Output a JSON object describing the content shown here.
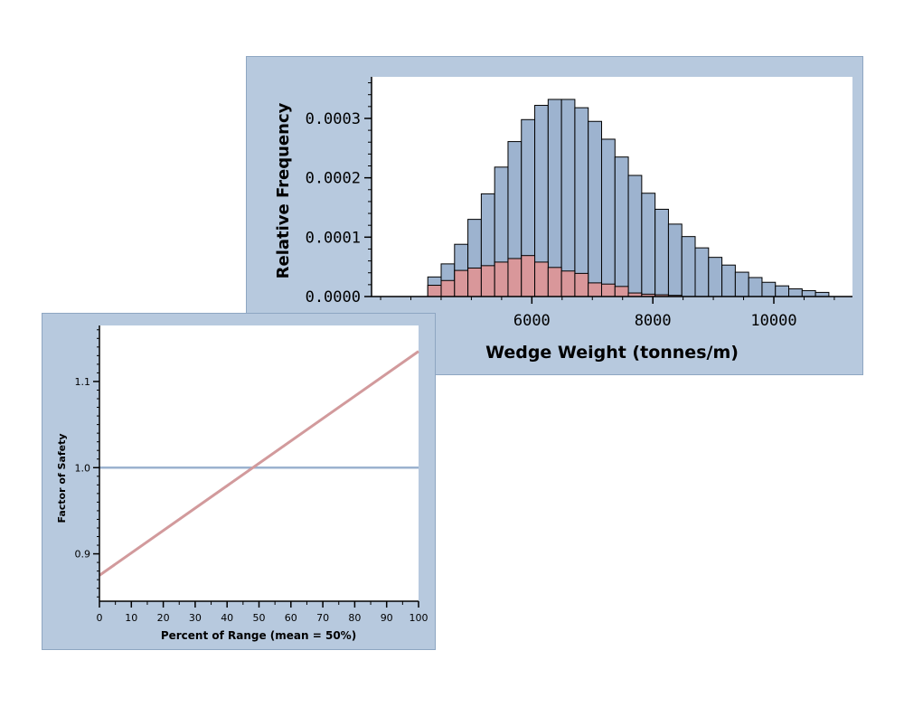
{
  "colors": {
    "panel_bg": "#b7c9de",
    "plot_bg": "#ffffff",
    "total_bar": "#9db3cf",
    "failed_bar": "#d9979a",
    "fs_line": "#d29a9c",
    "ref_line": "#9bb2cf",
    "axis": "#000000"
  },
  "chart_data": [
    {
      "type": "bar",
      "xlabel": "Wedge Weight (tonnes/m)",
      "ylabel": "Relative Frequency",
      "xlim": [
        3350,
        11300
      ],
      "ylim": [
        0,
        0.00037
      ],
      "x_ticks": [
        6000,
        8000,
        10000
      ],
      "x_tick_labels": [
        "6000",
        "8000",
        "10000"
      ],
      "y_ticks": [
        0,
        0.0001,
        0.0002,
        0.0003
      ],
      "y_tick_labels": [
        "0.0000",
        "0.0001",
        "0.0002",
        "0.0003"
      ],
      "bin_start": 4280,
      "bin_width": 221,
      "series": [
        {
          "role": "total",
          "values": [
            3.3e-05,
            5.5e-05,
            8.8e-05,
            0.00013,
            0.000173,
            0.000218,
            0.000261,
            0.000298,
            0.000322,
            0.000332,
            0.000332,
            0.000318,
            0.000295,
            0.000265,
            0.000235,
            0.000204,
            0.000174,
            0.000147,
            0.000122,
            0.000101,
            8.2e-05,
            6.6e-05,
            5.3e-05,
            4.1e-05,
            3.2e-05,
            2.4e-05,
            1.8e-05,
            1.3e-05,
            1e-05,
            7e-06
          ]
        },
        {
          "role": "failed",
          "values": [
            1.9e-05,
            2.7e-05,
            4.4e-05,
            4.8e-05,
            5.2e-05,
            5.8e-05,
            6.4e-05,
            6.9e-05,
            5.8e-05,
            4.9e-05,
            4.3e-05,
            3.9e-05,
            2.3e-05,
            2.1e-05,
            1.7e-05,
            6e-06,
            4e-06,
            3e-06,
            2e-06,
            0,
            0,
            0,
            0,
            0,
            0,
            0,
            0,
            0,
            0,
            0
          ]
        }
      ]
    },
    {
      "type": "line",
      "xlabel": "Percent of Range (mean = 50%)",
      "ylabel": "Factor of Safety",
      "xlim": [
        0,
        100
      ],
      "ylim": [
        0.845,
        1.165
      ],
      "x_ticks": [
        0,
        10,
        20,
        30,
        40,
        50,
        60,
        70,
        80,
        90,
        100
      ],
      "x_tick_labels": [
        "0",
        "10",
        "20",
        "30",
        "40",
        "50",
        "60",
        "70",
        "80",
        "90",
        "100"
      ],
      "y_ticks": [
        0.9,
        1.0,
        1.1
      ],
      "y_tick_labels": [
        "0.9",
        "1.0",
        "1.1"
      ],
      "series": [
        {
          "role": "factor-of-safety",
          "x": [
            0,
            100
          ],
          "y": [
            0.875,
            1.135
          ]
        },
        {
          "role": "reference",
          "x": [
            0,
            100
          ],
          "y": [
            1.0,
            1.0
          ]
        }
      ]
    }
  ]
}
